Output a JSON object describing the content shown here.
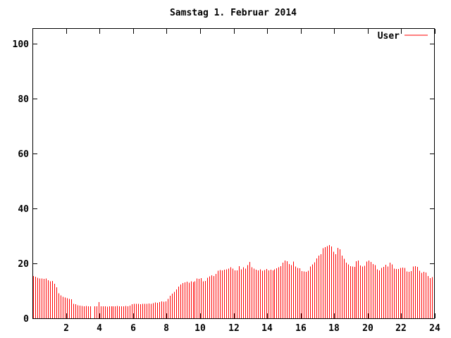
{
  "title": "Samstag 1. Februar 2014",
  "legend": {
    "label": "User",
    "color": "#ff0000",
    "position": "top-right"
  },
  "colors": {
    "background": "#ffffff",
    "border": "#000000",
    "series": "#ff0000"
  },
  "chart_data": {
    "type": "bar",
    "style": "impulses",
    "title": "Samstag 1. Februar 2014",
    "xlabel": "",
    "ylabel": "",
    "xlim": [
      0,
      24
    ],
    "ylim": [
      0,
      105.4
    ],
    "grid": false,
    "legend_position": "top-right",
    "x_tick_labels": [
      2,
      4,
      6,
      8,
      10,
      12,
      14,
      16,
      18,
      20,
      22,
      24
    ],
    "y_tick_labels": [
      0,
      20,
      40,
      60,
      80,
      100
    ],
    "x_unit": "hour-of-day",
    "sample_interval_hours": 0.125,
    "series": [
      {
        "name": "User",
        "color": "#ff0000",
        "values": [
          15.4,
          15.1,
          14.7,
          14.5,
          14.5,
          14.3,
          14.5,
          13.9,
          13.4,
          13.6,
          12.6,
          11.3,
          9.1,
          8.3,
          7.8,
          7.6,
          7.3,
          7.0,
          6.9,
          5.3,
          5.1,
          4.7,
          4.6,
          4.5,
          4.4,
          4.5,
          4.3,
          4.4,
          0,
          4.4,
          4.3,
          5.9,
          4.4,
          4.3,
          4.4,
          4.2,
          4.4,
          4.3,
          4.4,
          4.3,
          4.5,
          4.4,
          4.3,
          4.4,
          4.5,
          4.4,
          4.6,
          5.1,
          5.3,
          5.2,
          5.3,
          5.1,
          5.2,
          5.3,
          5.2,
          5.4,
          5.3,
          5.5,
          5.8,
          5.6,
          5.9,
          6.1,
          6.0,
          6.2,
          7.0,
          8.2,
          9.0,
          9.6,
          10.5,
          11.5,
          12.3,
          12.8,
          13.1,
          13.3,
          13.0,
          13.4,
          13.2,
          13.5,
          14.5,
          14.3,
          14.6,
          13.4,
          13.6,
          14.8,
          15.3,
          15.6,
          15.4,
          16.2,
          17.3,
          17.6,
          17.4,
          17.7,
          17.8,
          18.1,
          18.6,
          18.1,
          17.5,
          17.5,
          19.0,
          17.8,
          18.6,
          18.1,
          19.4,
          20.5,
          18.6,
          18.1,
          17.7,
          17.5,
          17.8,
          17.3,
          17.6,
          17.9,
          17.5,
          17.7,
          17.4,
          17.8,
          18.2,
          18.6,
          19.0,
          20.3,
          21.0,
          20.8,
          19.8,
          19.4,
          20.6,
          18.9,
          18.4,
          18.2,
          17.2,
          17.0,
          16.9,
          17.3,
          18.9,
          19.6,
          20.4,
          21.8,
          22.8,
          23.4,
          25.5,
          25.9,
          26.3,
          26.7,
          26.2,
          24.2,
          23.4,
          25.6,
          25.1,
          22.8,
          21.7,
          20.2,
          19.6,
          19.0,
          18.8,
          18.7,
          20.8,
          21.0,
          19.2,
          18.9,
          19.1,
          20.6,
          21.0,
          20.5,
          19.7,
          19.3,
          17.8,
          17.4,
          18.3,
          18.7,
          19.5,
          18.8,
          20.2,
          19.6,
          18.1,
          17.9,
          18.0,
          18.3,
          18.5,
          18.4,
          17.1,
          16.9,
          17.2,
          18.8,
          19.0,
          18.7,
          17.3,
          16.6,
          16.9,
          16.7,
          15.4,
          14.6,
          15.0,
          15.2
        ]
      }
    ]
  }
}
